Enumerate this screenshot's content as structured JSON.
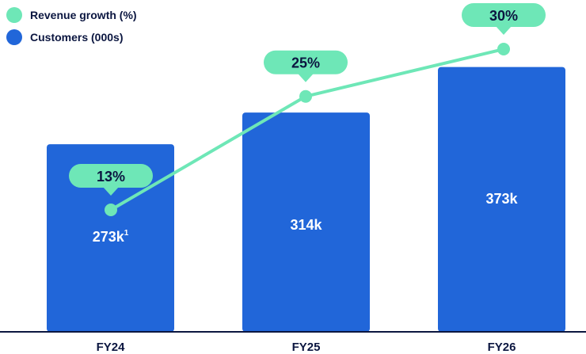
{
  "chart_data": {
    "type": "bar",
    "categories": [
      "FY24",
      "FY25",
      "FY26"
    ],
    "series": [
      {
        "name": "Customers (000s)",
        "kind": "bar",
        "color": "#2166d9",
        "values": [
          273,
          314,
          373
        ],
        "value_labels": [
          "273k",
          "314k",
          "373k"
        ],
        "footnote_markers": [
          "1",
          "",
          ""
        ]
      },
      {
        "name": "Revenue growth (%)",
        "kind": "line",
        "color": "#6ee7b7",
        "values": [
          13,
          25,
          30
        ],
        "value_labels": [
          "13%",
          "25%",
          "30%"
        ]
      }
    ],
    "legend_position": "top-left",
    "grid": false,
    "title": "",
    "xlabel": "",
    "ylabel": ""
  }
}
